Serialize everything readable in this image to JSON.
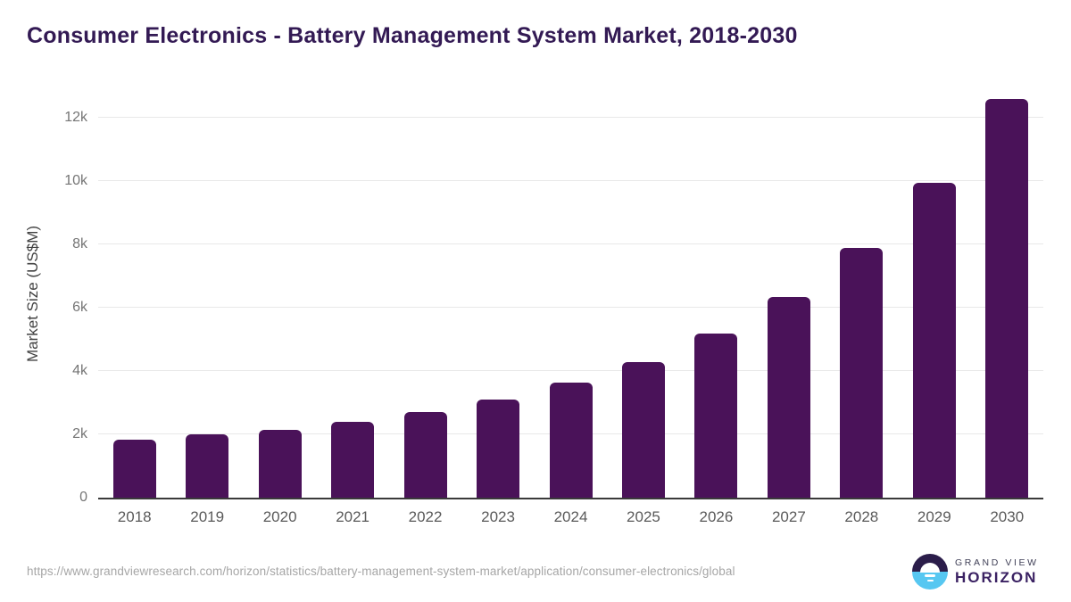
{
  "title": "Consumer Electronics - Battery Management System Market, 2018-2030",
  "chart_data": {
    "type": "bar",
    "title": "Consumer Electronics - Battery Management System Market, 2018-2030",
    "categories": [
      "2018",
      "2019",
      "2020",
      "2021",
      "2022",
      "2023",
      "2024",
      "2025",
      "2026",
      "2027",
      "2028",
      "2029",
      "2030"
    ],
    "values": [
      1820,
      2000,
      2150,
      2400,
      2710,
      3090,
      3630,
      4290,
      5180,
      6330,
      7890,
      9950,
      12580
    ],
    "xlabel": "",
    "ylabel": "Market Size (US$M)",
    "ylim": [
      0,
      12900
    ],
    "ytick_values": [
      0,
      2000,
      4000,
      6000,
      8000,
      10000,
      12000
    ],
    "ytick_labels": [
      "0",
      "2k",
      "4k",
      "6k",
      "8k",
      "10k",
      "12k"
    ],
    "grid": "horizontal",
    "legend": "none",
    "bar_color": "#4a1259"
  },
  "colors": {
    "title_text": "#331a54",
    "bar": "#4a1259",
    "gridline": "#e8e8e8",
    "axis_line": "#3a3a3a",
    "tick_text": "#757575",
    "xlabel_text": "#5a5a5a",
    "url_text": "#a6a6a6",
    "logo_purple": "#2b1d4a",
    "logo_blue": "#57c7f1",
    "logo_horizon_text": "#3b2263"
  },
  "footer": {
    "source_url": "https://www.grandviewresearch.com/horizon/statistics/battery-management-system-market/application/consumer-electronics/global",
    "logo": {
      "top_text": "GRAND VIEW",
      "bottom_text": "HORIZON"
    }
  }
}
